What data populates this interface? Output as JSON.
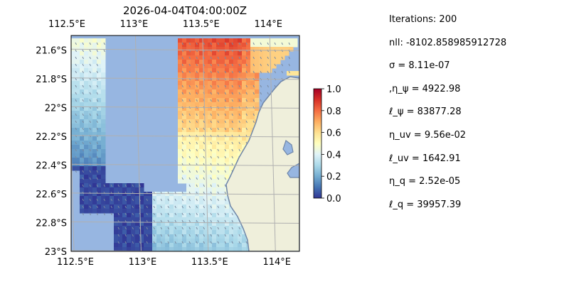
{
  "chart_data": {
    "type": "heatmap",
    "title": "2026-04-04T04:00:00Z",
    "x_ticks": [
      "112.5°E",
      "113°E",
      "113.5°E",
      "114°E"
    ],
    "x_tick_values": [
      112.5,
      113.0,
      113.5,
      114.0
    ],
    "y_ticks": [
      "21.6°S",
      "21.8°S",
      "22°S",
      "22.2°S",
      "22.4°S",
      "22.6°S",
      "22.8°S",
      "23°S"
    ],
    "y_tick_values": [
      -21.6,
      -21.8,
      -22.0,
      -22.2,
      -22.4,
      -22.6,
      -22.8,
      -23.0
    ],
    "xlim": [
      112.5,
      114.2
    ],
    "ylim": [
      -23.0,
      -21.5
    ],
    "grid": true,
    "colorbar": {
      "ticks": [
        "0.0",
        "0.2",
        "0.4",
        "0.6",
        "0.8",
        "1.0"
      ],
      "tick_values": [
        0.0,
        0.2,
        0.4,
        0.6,
        0.8,
        1.0
      ],
      "range": [
        0.0,
        1.0
      ]
    },
    "colors": {
      "ocean": "#97b6e1",
      "land": "#efefdb",
      "coast": "#6f86a8",
      "grid": "#b0b0b0",
      "quiver": "#7a8aa0"
    }
  },
  "params": [
    "Iterations: 200",
    "nll: -8102.858985912728",
    "σ = 8.11e-07",
    ",η_ψ = 4922.98",
    "ℓ_ψ = 83877.28",
    "η_uv = 9.56e-02",
    "ℓ_uv = 1642.91",
    "η_q = 2.52e-05",
    "ℓ_q = 39957.39"
  ]
}
